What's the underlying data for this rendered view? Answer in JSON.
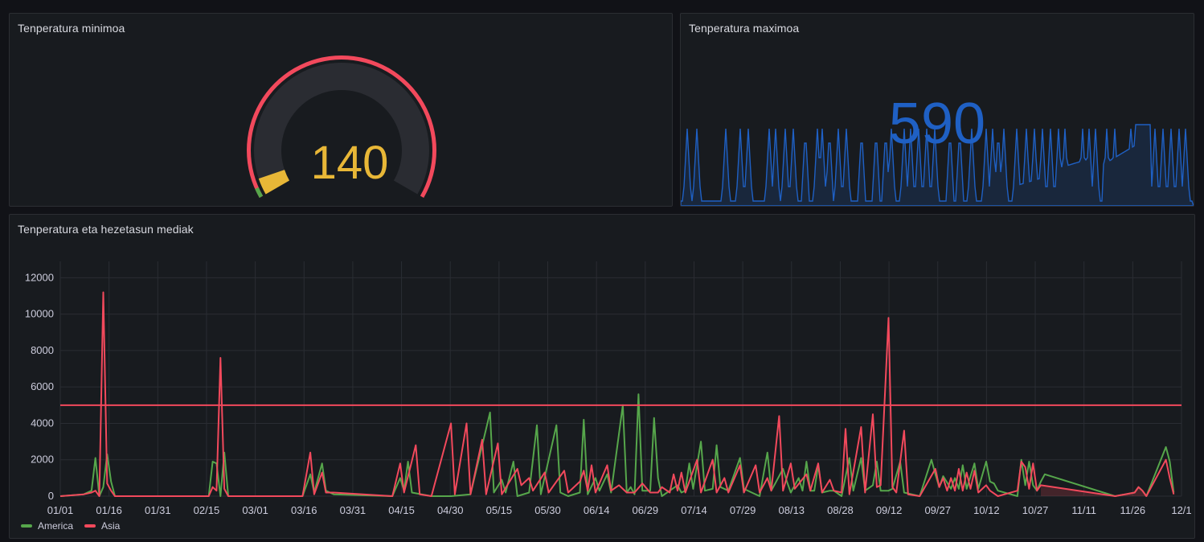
{
  "panels": {
    "gauge": {
      "title": "Tenperatura minimoa",
      "value": "140",
      "value_num": 140,
      "min": 0,
      "max": 3000,
      "colors": {
        "track": "#2a2c32",
        "threshold": "#f2495c",
        "fill": "#e8b737",
        "base": "#56a64b",
        "text": "#e8b737"
      }
    },
    "stat": {
      "title": "Tenperatura maximoa",
      "value": "590",
      "color": "#1f60c4"
    },
    "timeseries": {
      "title": "Tenperatura eta hezetasun mediak"
    }
  },
  "chart_data": {
    "type": "line",
    "y_ticks": [
      "0",
      "2000",
      "4000",
      "6000",
      "8000",
      "10000",
      "12000"
    ],
    "ylim": [
      0,
      12900
    ],
    "x_ticks": [
      "01/01",
      "01/16",
      "01/31",
      "02/15",
      "03/01",
      "03/16",
      "03/31",
      "04/15",
      "04/30",
      "05/15",
      "05/30",
      "06/14",
      "06/29",
      "07/14",
      "07/29",
      "08/13",
      "08/28",
      "09/12",
      "09/27",
      "10/12",
      "10/27",
      "11/11",
      "11/26",
      "12/1"
    ],
    "threshold": {
      "value": 5000,
      "color": "#f2495c"
    },
    "grid": true,
    "legend_position": "bottom-left",
    "series": [
      {
        "name": "America",
        "color": "#56a64b",
        "points": [
          [
            0,
            0
          ],
          [
            6,
            100
          ],
          [
            8,
            300
          ],
          [
            9,
            2100
          ],
          [
            10,
            0
          ],
          [
            11,
            500
          ],
          [
            12,
            2300
          ],
          [
            13,
            800
          ],
          [
            14,
            0
          ],
          [
            25,
            0
          ],
          [
            38,
            0
          ],
          [
            39,
            1900
          ],
          [
            40,
            1800
          ],
          [
            41,
            0
          ],
          [
            42,
            2400
          ],
          [
            43,
            0
          ],
          [
            62,
            0
          ],
          [
            64,
            1200
          ],
          [
            65,
            200
          ],
          [
            67,
            1800
          ],
          [
            68,
            300
          ],
          [
            70,
            100
          ],
          [
            85,
            0
          ],
          [
            87,
            1000
          ],
          [
            88,
            300
          ],
          [
            89,
            1900
          ],
          [
            90,
            200
          ],
          [
            95,
            0
          ],
          [
            100,
            0
          ],
          [
            105,
            100
          ],
          [
            110,
            4600
          ],
          [
            111,
            200
          ],
          [
            113,
            900
          ],
          [
            114,
            200
          ],
          [
            116,
            1900
          ],
          [
            117,
            0
          ],
          [
            120,
            200
          ],
          [
            122,
            3900
          ],
          [
            123,
            100
          ],
          [
            127,
            3900
          ],
          [
            128,
            200
          ],
          [
            130,
            0
          ],
          [
            133,
            200
          ],
          [
            134,
            4200
          ],
          [
            135,
            100
          ],
          [
            137,
            1000
          ],
          [
            138,
            300
          ],
          [
            140,
            1200
          ],
          [
            141,
            200
          ],
          [
            144,
            5000
          ],
          [
            145,
            200
          ],
          [
            146,
            500
          ],
          [
            147,
            100
          ],
          [
            148,
            5600
          ],
          [
            149,
            300
          ],
          [
            151,
            300
          ],
          [
            152,
            4300
          ],
          [
            153,
            1000
          ],
          [
            154,
            0
          ],
          [
            158,
            600
          ],
          [
            159,
            200
          ],
          [
            160,
            300
          ],
          [
            161,
            1800
          ],
          [
            162,
            400
          ],
          [
            164,
            3000
          ],
          [
            165,
            300
          ],
          [
            167,
            400
          ],
          [
            168,
            2800
          ],
          [
            169,
            500
          ],
          [
            171,
            300
          ],
          [
            174,
            2100
          ],
          [
            175,
            400
          ],
          [
            177,
            200
          ],
          [
            179,
            0
          ],
          [
            181,
            2400
          ],
          [
            182,
            300
          ],
          [
            183,
            700
          ],
          [
            185,
            1500
          ],
          [
            186,
            800
          ],
          [
            187,
            200
          ],
          [
            189,
            1000
          ],
          [
            190,
            300
          ],
          [
            191,
            1900
          ],
          [
            192,
            300
          ],
          [
            193,
            300
          ],
          [
            194,
            1700
          ],
          [
            195,
            200
          ],
          [
            197,
            300
          ],
          [
            198,
            300
          ],
          [
            200,
            0
          ],
          [
            202,
            2100
          ],
          [
            203,
            300
          ],
          [
            205,
            2100
          ],
          [
            206,
            300
          ],
          [
            208,
            600
          ],
          [
            209,
            1900
          ],
          [
            210,
            300
          ],
          [
            212,
            300
          ],
          [
            213,
            400
          ],
          [
            215,
            1900
          ],
          [
            216,
            200
          ],
          [
            220,
            0
          ],
          [
            223,
            2000
          ],
          [
            224,
            1200
          ],
          [
            225,
            500
          ],
          [
            226,
            1100
          ],
          [
            228,
            400
          ],
          [
            229,
            1000
          ],
          [
            230,
            400
          ],
          [
            231,
            1700
          ],
          [
            232,
            400
          ],
          [
            234,
            1800
          ],
          [
            235,
            400
          ],
          [
            237,
            1900
          ],
          [
            238,
            800
          ],
          [
            239,
            700
          ],
          [
            240,
            300
          ],
          [
            245,
            0
          ],
          [
            246,
            2000
          ],
          [
            247,
            600
          ],
          [
            248,
            1900
          ],
          [
            249,
            600
          ],
          [
            250,
            300
          ],
          [
            251,
            800
          ],
          [
            252,
            1200
          ],
          [
            270,
            0
          ],
          [
            275,
            200
          ],
          [
            276,
            500
          ],
          [
            277,
            300
          ],
          [
            278,
            0
          ],
          [
            283,
            2700
          ],
          [
            284,
            1900
          ],
          [
            285,
            200
          ]
        ]
      },
      {
        "name": "Asia",
        "color": "#f2495c",
        "points": [
          [
            0,
            0
          ],
          [
            6,
            100
          ],
          [
            8,
            200
          ],
          [
            9,
            300
          ],
          [
            10,
            0
          ],
          [
            11,
            11200
          ],
          [
            12,
            700
          ],
          [
            13,
            300
          ],
          [
            14,
            0
          ],
          [
            25,
            0
          ],
          [
            38,
            0
          ],
          [
            39,
            500
          ],
          [
            40,
            300
          ],
          [
            41,
            7600
          ],
          [
            42,
            400
          ],
          [
            43,
            0
          ],
          [
            62,
            0
          ],
          [
            64,
            2400
          ],
          [
            65,
            100
          ],
          [
            67,
            1300
          ],
          [
            68,
            200
          ],
          [
            70,
            200
          ],
          [
            85,
            0
          ],
          [
            87,
            1800
          ],
          [
            88,
            200
          ],
          [
            91,
            2800
          ],
          [
            92,
            100
          ],
          [
            95,
            0
          ],
          [
            100,
            4000
          ],
          [
            101,
            100
          ],
          [
            104,
            4000
          ],
          [
            105,
            100
          ],
          [
            108,
            3100
          ],
          [
            109,
            100
          ],
          [
            112,
            2900
          ],
          [
            113,
            100
          ],
          [
            117,
            1500
          ],
          [
            118,
            600
          ],
          [
            120,
            1000
          ],
          [
            121,
            300
          ],
          [
            124,
            1300
          ],
          [
            125,
            200
          ],
          [
            129,
            1400
          ],
          [
            130,
            200
          ],
          [
            133,
            800
          ],
          [
            134,
            1400
          ],
          [
            135,
            300
          ],
          [
            136,
            1700
          ],
          [
            137,
            200
          ],
          [
            140,
            1700
          ],
          [
            141,
            300
          ],
          [
            143,
            600
          ],
          [
            145,
            200
          ],
          [
            147,
            200
          ],
          [
            149,
            700
          ],
          [
            151,
            200
          ],
          [
            153,
            200
          ],
          [
            154,
            500
          ],
          [
            156,
            200
          ],
          [
            157,
            1200
          ],
          [
            158,
            300
          ],
          [
            159,
            1300
          ],
          [
            160,
            200
          ],
          [
            163,
            2000
          ],
          [
            164,
            200
          ],
          [
            167,
            2000
          ],
          [
            168,
            200
          ],
          [
            170,
            1000
          ],
          [
            171,
            200
          ],
          [
            174,
            1700
          ],
          [
            175,
            200
          ],
          [
            178,
            1700
          ],
          [
            179,
            200
          ],
          [
            181,
            1000
          ],
          [
            182,
            300
          ],
          [
            184,
            4400
          ],
          [
            185,
            300
          ],
          [
            187,
            1800
          ],
          [
            188,
            400
          ],
          [
            191,
            1200
          ],
          [
            192,
            300
          ],
          [
            194,
            1800
          ],
          [
            195,
            200
          ],
          [
            197,
            900
          ],
          [
            198,
            300
          ],
          [
            200,
            200
          ],
          [
            201,
            3700
          ],
          [
            202,
            100
          ],
          [
            205,
            3800
          ],
          [
            206,
            200
          ],
          [
            208,
            4500
          ],
          [
            209,
            500
          ],
          [
            210,
            600
          ],
          [
            212,
            9800
          ],
          [
            213,
            500
          ],
          [
            214,
            200
          ],
          [
            216,
            3600
          ],
          [
            217,
            100
          ],
          [
            220,
            0
          ],
          [
            224,
            1500
          ],
          [
            225,
            500
          ],
          [
            226,
            1000
          ],
          [
            227,
            300
          ],
          [
            228,
            1000
          ],
          [
            229,
            300
          ],
          [
            230,
            1500
          ],
          [
            231,
            300
          ],
          [
            232,
            1300
          ],
          [
            233,
            400
          ],
          [
            234,
            1400
          ],
          [
            235,
            200
          ],
          [
            237,
            600
          ],
          [
            238,
            300
          ],
          [
            240,
            0
          ],
          [
            245,
            300
          ],
          [
            246,
            1900
          ],
          [
            247,
            1600
          ],
          [
            248,
            400
          ],
          [
            249,
            1800
          ],
          [
            250,
            300
          ],
          [
            251,
            600
          ],
          [
            270,
            0
          ],
          [
            275,
            200
          ],
          [
            276,
            500
          ],
          [
            277,
            300
          ],
          [
            278,
            0
          ],
          [
            283,
            2000
          ],
          [
            284,
            1000
          ],
          [
            285,
            100
          ]
        ]
      }
    ]
  }
}
